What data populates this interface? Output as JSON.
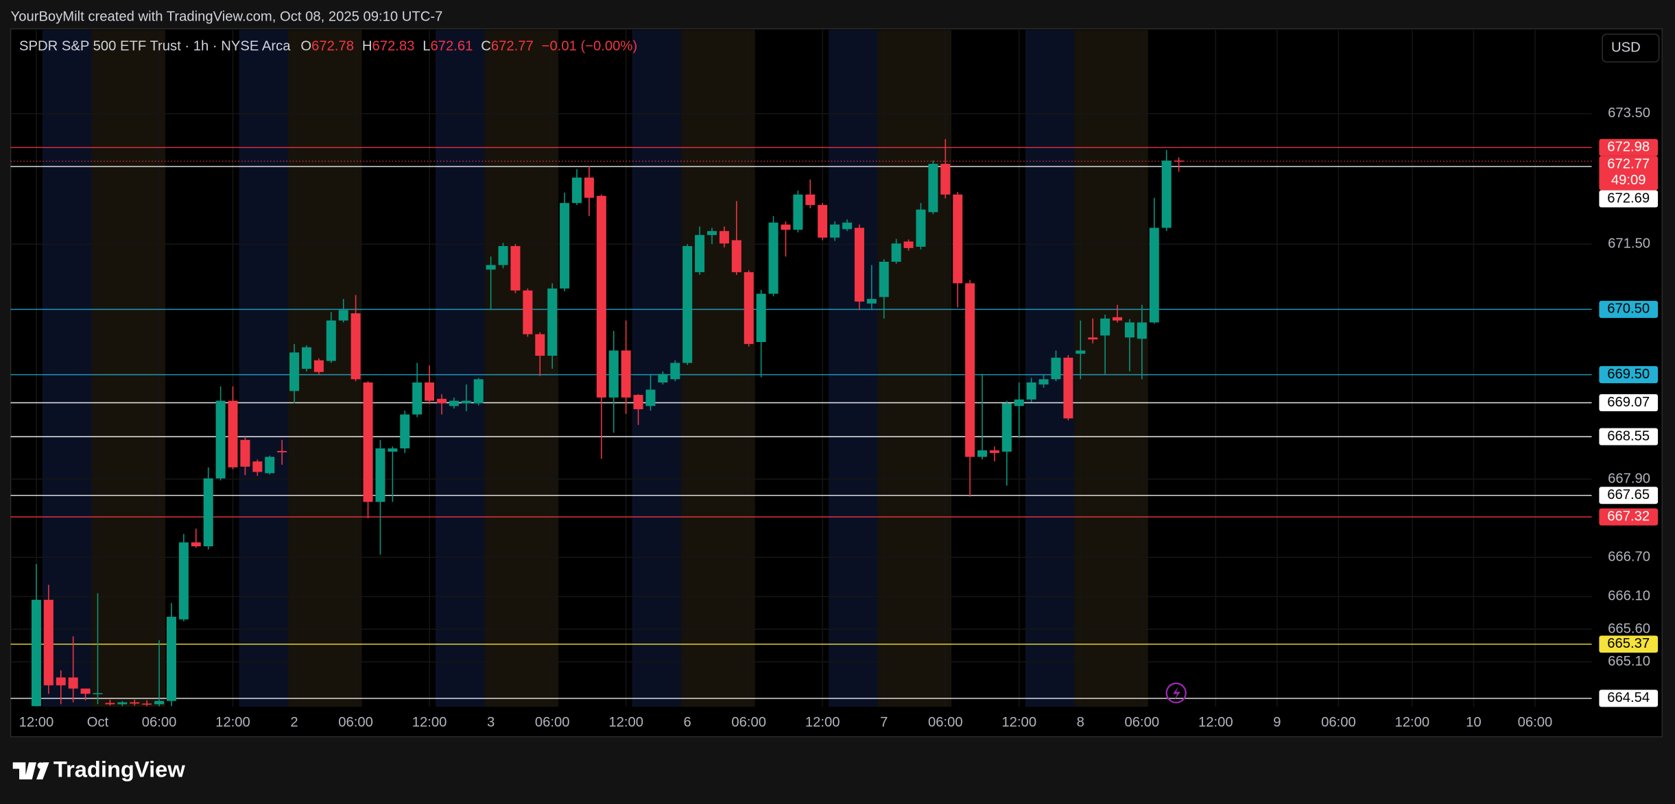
{
  "header": {
    "attribution": "YourBoyMilt created with TradingView.com, Oct 08, 2025 09:10 UTC-7"
  },
  "chart_data": {
    "type": "candlestick",
    "symbol_title": "SPDR S&P 500 ETF Trust · 1h · NYSE Arca",
    "legend_ohlc": [
      {
        "key": "O",
        "value": "672.78"
      },
      {
        "key": "H",
        "value": "672.83"
      },
      {
        "key": "L",
        "value": "672.61"
      },
      {
        "key": "C",
        "value": "672.77"
      }
    ],
    "legend_change": "−0.01 (−0.00%)",
    "currency": "USD",
    "categories": [
      "12:00",
      null,
      null,
      null,
      null,
      "Oct",
      null,
      null,
      null,
      null,
      "06:00",
      null,
      null,
      null,
      null,
      null,
      "12:00",
      null,
      null,
      null,
      null,
      "2",
      null,
      null,
      null,
      null,
      "06:00",
      null,
      null,
      null,
      null,
      null,
      "12:00",
      null,
      null,
      null,
      null,
      "3",
      null,
      null,
      null,
      null,
      "06:00",
      null,
      null,
      null,
      null,
      null,
      "12:00",
      null,
      null,
      null,
      null,
      "6",
      null,
      null,
      null,
      null,
      "06:00",
      null,
      null,
      null,
      null,
      null,
      "12:00",
      null,
      null,
      null,
      null,
      "7",
      null,
      null,
      null,
      null,
      "06:00",
      null,
      null,
      null,
      null,
      null,
      "12:00",
      null,
      null,
      null,
      null,
      "8",
      null,
      null,
      null,
      null,
      "06:00",
      null,
      null,
      null,
      null,
      null,
      "12:00",
      null,
      null,
      null,
      null,
      "9",
      null,
      null,
      null,
      null,
      "06:00",
      null,
      null,
      null,
      null,
      null,
      "12:00",
      null,
      null,
      null,
      null,
      "10",
      null,
      null,
      null,
      null,
      "06:00"
    ],
    "open": [
      664.42,
      666.05,
      664.86,
      664.86,
      664.69,
      664.61,
      664.47,
      664.45,
      664.48,
      664.46,
      664.45,
      664.5,
      665.75,
      666.93,
      666.87,
      667.91,
      669.1,
      668.5,
      668.17,
      667.99,
      668.33,
      669.25,
      669.59,
      669.72,
      669.71,
      670.33,
      670.44,
      669.38,
      667.55,
      668.32,
      668.37,
      668.89,
      669.38,
      669.13,
      669.02,
      669.06,
      669.06,
      671.11,
      671.18,
      671.47,
      670.79,
      670.12,
      669.79,
      670.82,
      672.13,
      672.52,
      672.24,
      669.15,
      669.87,
      669.19,
      669.02,
      669.38,
      669.43,
      669.68,
      671.07,
      671.64,
      671.7,
      671.56,
      671.07,
      670.0,
      670.74,
      671.8,
      671.72,
      672.26,
      672.1,
      671.6,
      671.73,
      671.75,
      670.59,
      670.69,
      671.23,
      671.54,
      671.46,
      671.99,
      672.73,
      672.26,
      670.9,
      668.24,
      668.34,
      668.32,
      669.02,
      669.12,
      669.35,
      669.43,
      669.76,
      669.82,
      670.07,
      670.1,
      670.38,
      670.07,
      670.05,
      670.3,
      671.75,
      672.78,
      null,
      null,
      null,
      null,
      null,
      null,
      null,
      null,
      null,
      null,
      null,
      null,
      null,
      null,
      null,
      null,
      null,
      null,
      null,
      null,
      null,
      null,
      null,
      null,
      null,
      null,
      null,
      null,
      null
    ],
    "high": [
      666.6,
      666.28,
      664.97,
      665.49,
      664.69,
      666.15,
      664.52,
      664.5,
      664.52,
      664.51,
      665.43,
      666.0,
      667.06,
      667.14,
      668.08,
      669.32,
      669.32,
      668.55,
      668.2,
      668.26,
      668.5,
      669.97,
      669.95,
      669.75,
      670.46,
      670.66,
      670.72,
      669.4,
      668.5,
      668.4,
      668.95,
      669.68,
      669.64,
      669.2,
      669.15,
      669.35,
      669.45,
      671.31,
      671.52,
      671.5,
      670.82,
      670.15,
      670.9,
      672.29,
      672.65,
      672.7,
      672.26,
      670.17,
      670.33,
      669.2,
      669.51,
      669.55,
      669.72,
      671.5,
      671.77,
      671.75,
      671.77,
      672.16,
      671.1,
      670.8,
      671.93,
      671.85,
      672.32,
      672.49,
      672.13,
      671.85,
      671.88,
      671.8,
      671.18,
      671.27,
      671.58,
      671.57,
      672.13,
      672.78,
      673.11,
      672.3,
      670.95,
      669.51,
      668.4,
      669.1,
      669.38,
      669.45,
      669.5,
      669.87,
      669.8,
      670.33,
      670.36,
      670.42,
      670.57,
      670.35,
      670.57,
      672.21,
      672.94,
      672.83,
      null,
      null,
      null,
      null,
      null,
      null,
      null,
      null,
      null,
      null,
      null,
      null,
      null,
      null,
      null,
      null,
      null,
      null,
      null,
      null,
      null,
      null,
      null,
      null,
      null,
      null,
      null,
      null,
      null
    ],
    "low": [
      664.42,
      664.61,
      664.45,
      664.48,
      664.51,
      664.45,
      664.43,
      664.42,
      664.43,
      664.42,
      664.42,
      664.42,
      665.72,
      666.85,
      666.82,
      667.88,
      668.05,
      667.96,
      667.95,
      667.97,
      668.12,
      669.06,
      669.55,
      669.5,
      669.68,
      670.3,
      669.4,
      667.3,
      666.74,
      667.55,
      668.3,
      668.85,
      669.05,
      668.89,
      668.98,
      668.94,
      669.03,
      670.49,
      671.13,
      670.75,
      670.08,
      669.48,
      669.59,
      670.78,
      672.1,
      671.93,
      668.21,
      668.61,
      668.9,
      668.73,
      668.95,
      669.35,
      669.4,
      669.65,
      671.03,
      671.5,
      671.45,
      671.03,
      669.93,
      669.46,
      670.7,
      671.31,
      671.68,
      672.05,
      671.56,
      671.55,
      671.7,
      670.49,
      670.49,
      670.36,
      671.2,
      671.4,
      671.42,
      671.96,
      672.2,
      670.53,
      667.63,
      668.2,
      668.17,
      667.8,
      668.53,
      669.08,
      669.3,
      669.4,
      668.8,
      669.43,
      669.98,
      669.51,
      670.3,
      669.55,
      669.43,
      670.28,
      671.7,
      672.61,
      null,
      null,
      null,
      null,
      null,
      null,
      null,
      null,
      null,
      null,
      null,
      null,
      null,
      null,
      null,
      null,
      null,
      null,
      null,
      null,
      null,
      null,
      null,
      null,
      null,
      null,
      null,
      null,
      null
    ],
    "close": [
      666.05,
      664.74,
      664.74,
      664.69,
      664.61,
      664.62,
      664.45,
      664.48,
      664.46,
      664.45,
      664.5,
      665.79,
      666.93,
      666.87,
      667.91,
      669.1,
      668.08,
      668.09,
      668.01,
      668.24,
      668.31,
      669.84,
      669.92,
      669.54,
      670.33,
      670.49,
      669.43,
      667.55,
      668.37,
      668.37,
      668.89,
      669.38,
      669.1,
      669.06,
      669.1,
      669.1,
      669.43,
      671.18,
      671.47,
      670.79,
      670.12,
      669.79,
      670.82,
      672.13,
      672.52,
      672.21,
      669.15,
      669.87,
      669.15,
      668.97,
      669.27,
      669.51,
      669.68,
      671.47,
      671.64,
      671.7,
      671.51,
      671.07,
      669.97,
      670.74,
      671.83,
      671.72,
      672.26,
      672.1,
      671.6,
      671.8,
      671.83,
      670.62,
      670.66,
      671.23,
      671.51,
      671.44,
      672.03,
      672.73,
      672.26,
      670.9,
      668.24,
      668.34,
      668.3,
      669.06,
      669.12,
      669.38,
      669.43,
      669.76,
      668.83,
      669.87,
      670.04,
      670.36,
      670.33,
      670.3,
      670.3,
      671.75,
      672.78,
      672.77,
      null,
      null,
      null,
      null,
      null,
      null,
      null,
      null,
      null,
      null,
      null,
      null,
      null,
      null,
      null,
      null,
      null,
      null,
      null,
      null,
      null,
      null,
      null,
      null,
      null,
      null,
      null,
      null,
      null
    ],
    "up_color": "#089981",
    "down_color": "#f23645",
    "ylim": [
      664.41,
      674.75
    ],
    "yticks": [
      {
        "value": 673.5,
        "label": "673.50"
      },
      {
        "value": 671.5,
        "label": "671.50"
      },
      {
        "value": 667.9,
        "label": "667.90"
      },
      {
        "value": 666.7,
        "label": "666.70"
      },
      {
        "value": 666.1,
        "label": "666.10"
      },
      {
        "value": 665.6,
        "label": "665.60"
      },
      {
        "value": 665.1,
        "label": "665.10"
      }
    ],
    "price_lines": [
      {
        "value": 672.98,
        "label": "672.98",
        "color": "#f23645",
        "text_color": "#ffffff"
      },
      {
        "value": 672.77,
        "label": "672.77",
        "countdown": "49:09",
        "color": "#f23645",
        "text_color": "#ffffff",
        "style": "dotted"
      },
      {
        "value": 672.69,
        "label": "672.69",
        "color": "#ffffff",
        "text_color": "#000000"
      },
      {
        "value": 670.5,
        "label": "670.50",
        "color": "#22b0d4",
        "text_color": "#000000"
      },
      {
        "value": 669.5,
        "label": "669.50",
        "color": "#22b0d4",
        "text_color": "#000000"
      },
      {
        "value": 669.07,
        "label": "669.07",
        "color": "#ffffff",
        "text_color": "#000000"
      },
      {
        "value": 668.55,
        "label": "668.55",
        "color": "#ffffff",
        "text_color": "#000000"
      },
      {
        "value": 667.65,
        "label": "667.65",
        "color": "#ffffff",
        "text_color": "#000000"
      },
      {
        "value": 667.32,
        "label": "667.32",
        "color": "#f23645",
        "text_color": "#ffffff"
      },
      {
        "value": 665.37,
        "label": "665.37",
        "color": "#f5e23a",
        "text_color": "#000000"
      },
      {
        "value": 664.54,
        "label": "664.54",
        "color": "#ffffff",
        "text_color": "#000000"
      }
    ],
    "grid": true
  },
  "footer": {
    "brand": "TradingView"
  }
}
